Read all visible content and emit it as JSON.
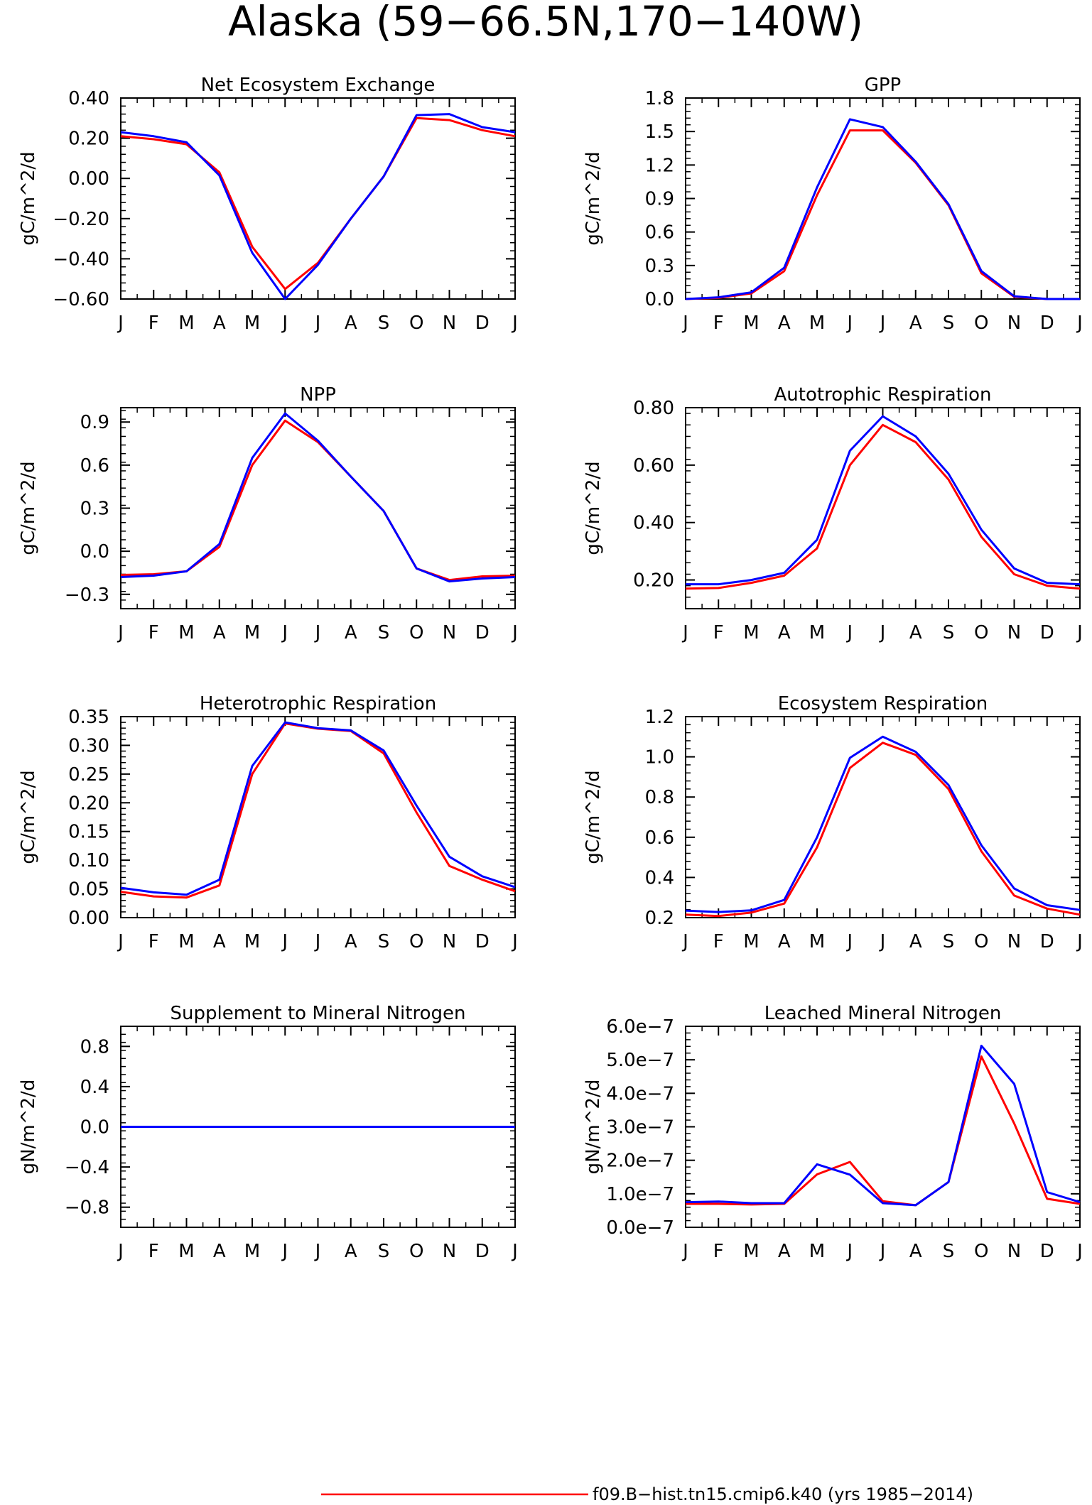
{
  "page": {
    "title": "Alaska (59−66.5N,170−140W)",
    "footer": "f09.B−hist.tn15.cmip6.k40 (yrs 1985−2014)"
  },
  "colors": {
    "series_red": "#ff0000",
    "series_blue": "#0000ff",
    "axis": "#000000"
  },
  "chart_data": [
    {
      "type": "line",
      "title": "Net Ecosystem Exchange",
      "ylabel": "gC/m^2/d",
      "categories": [
        "J",
        "F",
        "M",
        "A",
        "M",
        "J",
        "J",
        "A",
        "S",
        "O",
        "N",
        "D",
        "J"
      ],
      "ylim": [
        -0.6,
        0.4
      ],
      "yticks": [
        -0.6,
        -0.4,
        -0.2,
        0.0,
        0.2,
        0.4
      ],
      "yticklabels": [
        "−0.60",
        "−0.40",
        "−0.20",
        "0.00",
        "0.20",
        "0.40"
      ],
      "series": [
        {
          "color": "#ff0000",
          "values": [
            0.21,
            0.195,
            0.17,
            0.03,
            -0.34,
            -0.55,
            -0.42,
            -0.2,
            0.01,
            0.3,
            0.29,
            0.24,
            0.21
          ]
        },
        {
          "color": "#0000ff",
          "values": [
            0.23,
            0.21,
            0.18,
            0.015,
            -0.37,
            -0.6,
            -0.43,
            -0.2,
            0.01,
            0.315,
            0.32,
            0.255,
            0.23
          ]
        }
      ]
    },
    {
      "type": "line",
      "title": "GPP",
      "ylabel": "gC/m^2/d",
      "categories": [
        "J",
        "F",
        "M",
        "A",
        "M",
        "J",
        "J",
        "A",
        "S",
        "O",
        "N",
        "D",
        "J"
      ],
      "ylim": [
        0.0,
        1.8
      ],
      "yticks": [
        0.0,
        0.3,
        0.6,
        0.9,
        1.2,
        1.5,
        1.8
      ],
      "yticklabels": [
        "0.0",
        "0.3",
        "0.6",
        "0.9",
        "1.2",
        "1.5",
        "1.8"
      ],
      "series": [
        {
          "color": "#ff0000",
          "values": [
            0.0,
            0.01,
            0.05,
            0.25,
            0.93,
            1.51,
            1.51,
            1.22,
            0.84,
            0.23,
            0.02,
            0.0,
            0.0
          ]
        },
        {
          "color": "#0000ff",
          "values": [
            0.0,
            0.015,
            0.06,
            0.28,
            1.0,
            1.61,
            1.54,
            1.23,
            0.85,
            0.25,
            0.025,
            0.0,
            0.0
          ]
        }
      ]
    },
    {
      "type": "line",
      "title": "NPP",
      "ylabel": "gC/m^2/d",
      "categories": [
        "J",
        "F",
        "M",
        "A",
        "M",
        "J",
        "J",
        "A",
        "S",
        "O",
        "N",
        "D",
        "J"
      ],
      "ylim": [
        -0.4,
        1.0
      ],
      "yticks": [
        -0.3,
        0.0,
        0.3,
        0.6,
        0.9
      ],
      "yticklabels": [
        "−0.3",
        "0.0",
        "0.3",
        "0.6",
        "0.9"
      ],
      "series": [
        {
          "color": "#ff0000",
          "values": [
            -0.165,
            -0.16,
            -0.14,
            0.03,
            0.6,
            0.91,
            0.76,
            0.52,
            0.28,
            -0.12,
            -0.2,
            -0.175,
            -0.17
          ]
        },
        {
          "color": "#0000ff",
          "values": [
            -0.18,
            -0.17,
            -0.14,
            0.05,
            0.65,
            0.96,
            0.77,
            0.52,
            0.28,
            -0.12,
            -0.21,
            -0.19,
            -0.18
          ]
        }
      ]
    },
    {
      "type": "line",
      "title": "Autotrophic Respiration",
      "ylabel": "gC/m^2/d",
      "categories": [
        "J",
        "F",
        "M",
        "A",
        "M",
        "J",
        "J",
        "A",
        "S",
        "O",
        "N",
        "D",
        "J"
      ],
      "ylim": [
        0.1,
        0.8
      ],
      "yticks": [
        0.2,
        0.4,
        0.6,
        0.8
      ],
      "yticklabels": [
        "0.20",
        "0.40",
        "0.60",
        "0.80"
      ],
      "series": [
        {
          "color": "#ff0000",
          "values": [
            0.17,
            0.172,
            0.19,
            0.215,
            0.31,
            0.6,
            0.74,
            0.68,
            0.55,
            0.35,
            0.22,
            0.18,
            0.17
          ]
        },
        {
          "color": "#0000ff",
          "values": [
            0.185,
            0.185,
            0.2,
            0.225,
            0.34,
            0.65,
            0.77,
            0.7,
            0.57,
            0.375,
            0.24,
            0.19,
            0.185
          ]
        }
      ]
    },
    {
      "type": "line",
      "title": "Heterotrophic Respiration",
      "ylabel": "gC/m^2/d",
      "categories": [
        "J",
        "F",
        "M",
        "A",
        "M",
        "J",
        "J",
        "A",
        "S",
        "O",
        "N",
        "D",
        "J"
      ],
      "ylim": [
        0.0,
        0.35
      ],
      "yticks": [
        0.0,
        0.05,
        0.1,
        0.15,
        0.2,
        0.25,
        0.3,
        0.35
      ],
      "yticklabels": [
        "0.00",
        "0.05",
        "0.10",
        "0.15",
        "0.20",
        "0.25",
        "0.30",
        "0.35"
      ],
      "series": [
        {
          "color": "#ff0000",
          "values": [
            0.045,
            0.037,
            0.035,
            0.056,
            0.25,
            0.338,
            0.329,
            0.325,
            0.286,
            0.183,
            0.09,
            0.066,
            0.046
          ]
        },
        {
          "color": "#0000ff",
          "values": [
            0.052,
            0.044,
            0.04,
            0.066,
            0.264,
            0.34,
            0.33,
            0.326,
            0.291,
            0.195,
            0.106,
            0.072,
            0.053
          ]
        }
      ]
    },
    {
      "type": "line",
      "title": "Ecosystem Respiration",
      "ylabel": "gC/m^2/d",
      "categories": [
        "J",
        "F",
        "M",
        "A",
        "M",
        "J",
        "J",
        "A",
        "S",
        "O",
        "N",
        "D",
        "J"
      ],
      "ylim": [
        0.2,
        1.2
      ],
      "yticks": [
        0.2,
        0.4,
        0.6,
        0.8,
        1.0,
        1.2
      ],
      "yticklabels": [
        "0.2",
        "0.4",
        "0.6",
        "0.8",
        "1.0",
        "1.2"
      ],
      "series": [
        {
          "color": "#ff0000",
          "values": [
            0.215,
            0.208,
            0.225,
            0.27,
            0.55,
            0.945,
            1.07,
            1.01,
            0.84,
            0.53,
            0.31,
            0.245,
            0.215
          ]
        },
        {
          "color": "#0000ff",
          "values": [
            0.235,
            0.228,
            0.236,
            0.288,
            0.6,
            0.995,
            1.1,
            1.025,
            0.86,
            0.56,
            0.345,
            0.262,
            0.238
          ]
        }
      ]
    },
    {
      "type": "line",
      "title": "Supplement to Mineral Nitrogen",
      "ylabel": "gN/m^2/d",
      "categories": [
        "J",
        "F",
        "M",
        "A",
        "M",
        "J",
        "J",
        "A",
        "S",
        "O",
        "N",
        "D",
        "J"
      ],
      "ylim": [
        -1.0,
        1.0
      ],
      "yticks": [
        -0.8,
        -0.4,
        0.0,
        0.4,
        0.8
      ],
      "yticklabels": [
        "−0.8",
        "−0.4",
        "0.0",
        "0.4",
        "0.8"
      ],
      "series": [
        {
          "color": "#ff0000",
          "values": [
            0,
            0,
            0,
            0,
            0,
            0,
            0,
            0,
            0,
            0,
            0,
            0,
            0
          ]
        },
        {
          "color": "#0000ff",
          "values": [
            0,
            0,
            0,
            0,
            0,
            0,
            0,
            0,
            0,
            0,
            0,
            0,
            0
          ]
        }
      ]
    },
    {
      "type": "line",
      "title": "Leached Mineral Nitrogen",
      "ylabel": "gN/m^2/d",
      "categories": [
        "J",
        "F",
        "M",
        "A",
        "M",
        "J",
        "J",
        "A",
        "S",
        "O",
        "N",
        "D",
        "J"
      ],
      "ylim": [
        0.0,
        6e-07
      ],
      "yticks": [
        0.0,
        1e-07,
        2e-07,
        3e-07,
        4e-07,
        5e-07,
        6e-07
      ],
      "yticklabels": [
        "0.0e−7",
        "1.0e−7",
        "2.0e−7",
        "3.0e−7",
        "4.0e−7",
        "5.0e−7",
        "6.0e−7"
      ],
      "series": [
        {
          "color": "#ff0000",
          "values": [
            7e-08,
            7e-08,
            6.8e-08,
            7e-08,
            1.58e-07,
            1.95e-07,
            7.8e-08,
            6.6e-08,
            1.35e-07,
            5.1e-07,
            3.1e-07,
            8.5e-08,
            7e-08
          ]
        },
        {
          "color": "#0000ff",
          "values": [
            7.5e-08,
            7.7e-08,
            7.2e-08,
            7.2e-08,
            1.88e-07,
            1.57e-07,
            7.2e-08,
            6.6e-08,
            1.35e-07,
            5.42e-07,
            4.28e-07,
            1.05e-07,
            7.5e-08
          ]
        }
      ]
    }
  ]
}
